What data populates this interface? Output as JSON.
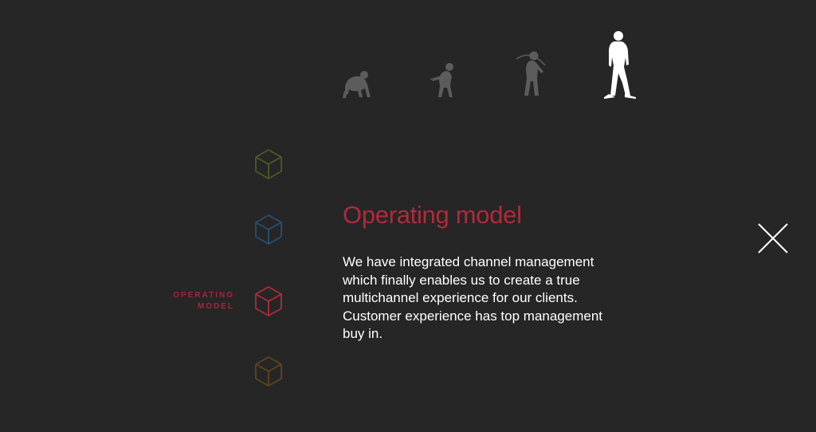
{
  "evolution": {
    "stages": [
      {
        "icon": "ape-icon",
        "color": "#5c5c5c"
      },
      {
        "icon": "early-hominid-icon",
        "color": "#5c5c5c"
      },
      {
        "icon": "caveman-icon",
        "color": "#5c5c5c"
      },
      {
        "icon": "modern-human-icon",
        "color": "#ffffff"
      }
    ]
  },
  "cubes": [
    {
      "icon": "cube-icon",
      "color": "#4d5a22"
    },
    {
      "icon": "cube-icon",
      "color": "#245073"
    },
    {
      "icon": "cube-icon",
      "color": "#b02a3b",
      "active": true,
      "label_line1": "OPERATING",
      "label_line2": "MODEL"
    },
    {
      "icon": "cube-icon",
      "color": "#5e4421"
    }
  ],
  "content": {
    "title": "Operating model",
    "body": "We have integrated channel management which finally enables us to create a true multichannel experience for our clients. Customer experience has top management buy in."
  },
  "close": {
    "icon": "close-icon"
  },
  "colors": {
    "background": "#262626",
    "accent": "#b02a3b",
    "text": "#ffffff"
  }
}
